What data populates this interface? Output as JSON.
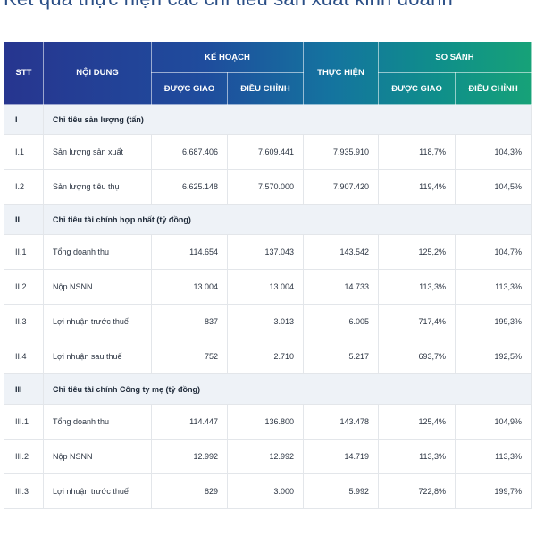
{
  "page": {
    "title": "Kết quả thực hiện các chỉ tiêu sản xuất kinh doanh"
  },
  "header": {
    "stt": "STT",
    "noi_dung": "NỘI DUNG",
    "ke_hoach": "KẾ HOẠCH",
    "thuc_hien": "THỰC HIỆN",
    "so_sanh": "SO SÁNH",
    "duoc_giao": "ĐƯỢC GIAO",
    "dieu_chinh": "ĐIỀU CHỈNH",
    "ss_duoc_giao": "ĐƯỢC GIAO",
    "ss_dieu_chinh": "ĐIỀU CHỈNH"
  },
  "rows": [
    {
      "stt": "I",
      "content": "Chỉ tiêu sản lượng (tấn)"
    },
    {
      "stt": "I.1",
      "content": "Sản lượng sản xuất",
      "duoc_giao": "6.687.406",
      "dieu_chinh": "7.609.441",
      "thuc_hien": "7.935.910",
      "ss_duoc_giao": "118,7%",
      "ss_dieu_chinh": "104,3%"
    },
    {
      "stt": "I.2",
      "content": "Sản lượng tiêu thụ",
      "duoc_giao": "6.625.148",
      "dieu_chinh": "7.570.000",
      "thuc_hien": "7.907.420",
      "ss_duoc_giao": "119,4%",
      "ss_dieu_chinh": "104,5%"
    },
    {
      "stt": "II",
      "content": "Chỉ tiêu tài chính hợp nhất (tỷ đồng)"
    },
    {
      "stt": "II.1",
      "content": "Tổng doanh thu",
      "duoc_giao": "114.654",
      "dieu_chinh": "137.043",
      "thuc_hien": "143.542",
      "ss_duoc_giao": "125,2%",
      "ss_dieu_chinh": "104,7%"
    },
    {
      "stt": "II.2",
      "content": "Nộp NSNN",
      "duoc_giao": "13.004",
      "dieu_chinh": "13.004",
      "thuc_hien": "14.733",
      "ss_duoc_giao": "113,3%",
      "ss_dieu_chinh": "113,3%"
    },
    {
      "stt": "II.3",
      "content": "Lợi nhuận trước thuế",
      "duoc_giao": "837",
      "dieu_chinh": "3.013",
      "thuc_hien": "6.005",
      "ss_duoc_giao": "717,4%",
      "ss_dieu_chinh": "199,3%"
    },
    {
      "stt": "II.4",
      "content": "Lợi nhuận sau thuế",
      "duoc_giao": "752",
      "dieu_chinh": "2.710",
      "thuc_hien": "5.217",
      "ss_duoc_giao": "693,7%",
      "ss_dieu_chinh": "192,5%"
    },
    {
      "stt": "III",
      "content": "Chỉ tiêu tài chính Công ty mẹ (tỷ đồng)"
    },
    {
      "stt": "III.1",
      "content": "Tổng doanh thu",
      "duoc_giao": "114.447",
      "dieu_chinh": "136.800",
      "thuc_hien": "143.478",
      "ss_duoc_giao": "125,4%",
      "ss_dieu_chinh": "104,9%"
    },
    {
      "stt": "III.2",
      "content": "Nộp NSNN",
      "duoc_giao": "12.992",
      "dieu_chinh": "12.992",
      "thuc_hien": "14.719",
      "ss_duoc_giao": "113,3%",
      "ss_dieu_chinh": "113,3%"
    },
    {
      "stt": "III.3",
      "content": "Lợi nhuận trước thuế",
      "duoc_giao": "829",
      "dieu_chinh": "3.000",
      "thuc_hien": "5.992",
      "ss_duoc_giao": "722,8%",
      "ss_dieu_chinh": "199,7%"
    }
  ]
}
